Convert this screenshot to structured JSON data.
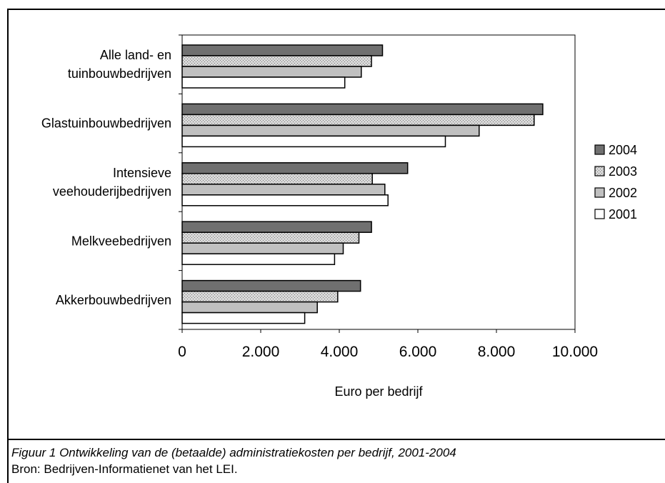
{
  "chart_data": {
    "type": "bar",
    "orientation": "horizontal",
    "categories": [
      [
        "Alle land- en",
        "tuinbouwbedrijven"
      ],
      [
        "Glastuinbouwbedrijven"
      ],
      [
        "Intensieve",
        "veehouderijbedrijven"
      ],
      [
        "Melkveebedrijven"
      ],
      [
        "Akkerbouwbedrijven"
      ]
    ],
    "series": [
      {
        "name": "2004",
        "values": [
          5100,
          9180,
          5740,
          4820,
          4540
        ],
        "fill": "#707070",
        "pattern": "none"
      },
      {
        "name": "2003",
        "values": [
          4820,
          8960,
          4840,
          4500,
          3960
        ],
        "fill": "#c8c8c8",
        "pattern": "dots"
      },
      {
        "name": "2002",
        "values": [
          4560,
          7560,
          5160,
          4100,
          3440
        ],
        "fill": "#c0c0c0",
        "pattern": "none"
      },
      {
        "name": "2001",
        "values": [
          4140,
          6700,
          5240,
          3880,
          3120
        ],
        "fill": "#ffffff",
        "pattern": "none"
      }
    ],
    "legend_order": [
      "2004",
      "2003",
      "2002",
      "2001"
    ],
    "xlabel": "Euro per bedrijf",
    "ylabel": "",
    "xlim": [
      0,
      10000
    ],
    "xticks": [
      0,
      2000,
      4000,
      6000,
      8000,
      10000
    ],
    "xtick_labels": [
      "0",
      "2.000",
      "4.000",
      "6.000",
      "8.000",
      "10.000"
    ],
    "legend_position": "right",
    "grid": false
  },
  "caption": {
    "figure": "Figuur 1 Ontwikkeling van de (betaalde) administratiekosten per bedrijf, 2001-2004",
    "source": "Bron: Bedrijven-Informatienet van het LEI."
  }
}
